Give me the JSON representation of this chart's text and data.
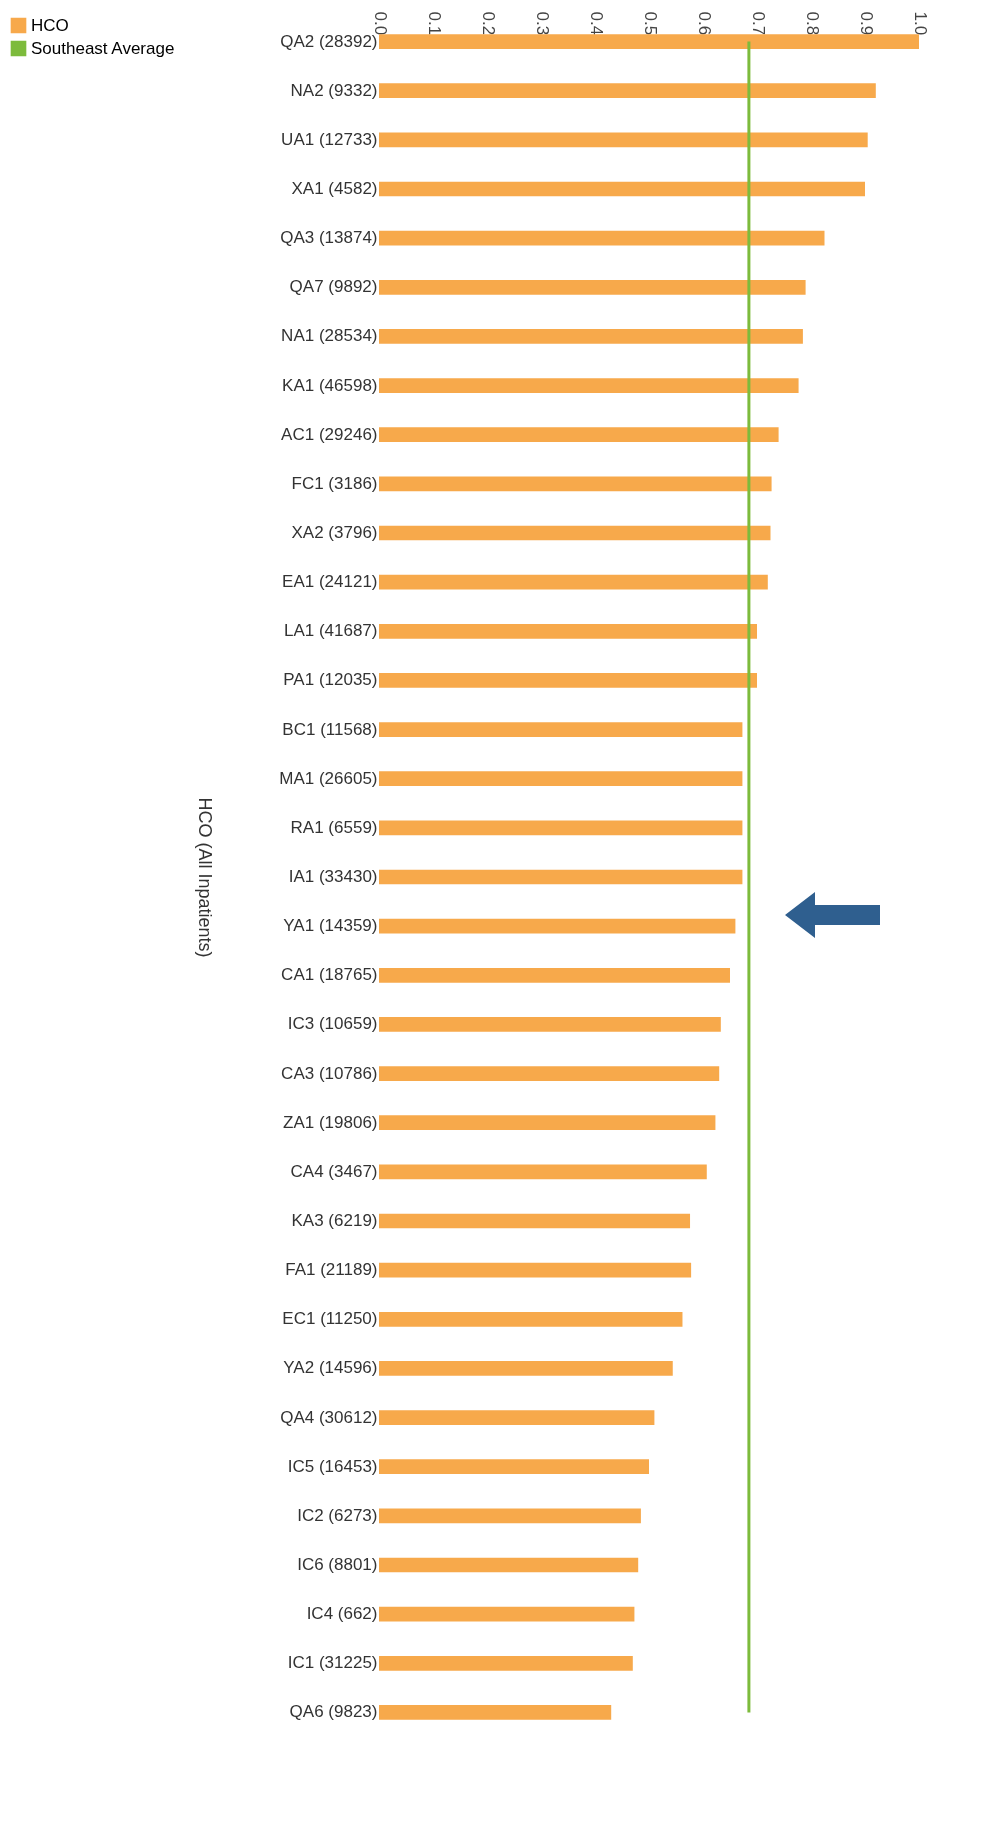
{
  "chart_data": {
    "type": "bar",
    "orientation": "horizontal",
    "ylabel": "HCO (All Inpatients)",
    "categories": [
      "QA2 (28392)",
      "NA2 (9332)",
      "UA1 (12733)",
      "XA1 (4582)",
      "QA3 (13874)",
      "QA7 (9892)",
      "NA1 (28534)",
      "KA1 (46598)",
      "AC1 (29246)",
      "FC1 (3186)",
      "XA2 (3796)",
      "EA1 (24121)",
      "LA1 (41687)",
      "PA1 (12035)",
      "BC1 (11568)",
      "MA1 (26605)",
      "RA1 (6559)",
      "IA1 (33430)",
      "YA1 (14359)",
      "CA1 (18765)",
      "IC3 (10659)",
      "CA3 (10786)",
      "ZA1 (19806)",
      "CA4 (3467)",
      "KA3 (6219)",
      "FA1 (21189)",
      "EC1 (11250)",
      "YA2 (14596)",
      "QA4 (30612)",
      "IC5 (16453)",
      "IC2 (6273)",
      "IC6 (8801)",
      "IC4 (662)",
      "IC1 (31225)",
      "QA6 (9823)"
    ],
    "series": [
      {
        "name": "HCO",
        "color": "#f7a94b",
        "values": [
          1.0,
          0.92,
          0.905,
          0.9,
          0.825,
          0.79,
          0.785,
          0.777,
          0.74,
          0.727,
          0.725,
          0.72,
          0.7,
          0.7,
          0.673,
          0.673,
          0.673,
          0.673,
          0.66,
          0.65,
          0.633,
          0.63,
          0.623,
          0.607,
          0.576,
          0.578,
          0.562,
          0.544,
          0.51,
          0.5,
          0.485,
          0.48,
          0.473,
          0.47,
          0.43
        ]
      },
      {
        "name": "Southeast Average",
        "type": "line",
        "color": "#7dbb3c",
        "values": [
          0.685,
          0.685,
          0.685,
          0.685,
          0.685,
          0.685,
          0.685,
          0.685,
          0.685,
          0.685,
          0.685,
          0.685,
          0.685,
          0.685,
          0.685,
          0.685,
          0.685,
          0.685,
          0.685,
          0.685,
          0.685,
          0.685,
          0.685,
          0.685,
          0.685,
          0.685,
          0.685,
          0.685,
          0.685,
          0.685,
          0.685,
          0.685,
          0.685,
          0.685,
          0.685
        ]
      }
    ],
    "xlim": [
      0,
      1
    ],
    "xticks": [
      {
        "value": 0,
        "label": "0.0"
      },
      0.1,
      0.2,
      0.3,
      0.4,
      0.5,
      0.6,
      0.7,
      0.8,
      0.9,
      {
        "value": 1,
        "label": "1.0"
      }
    ],
    "legend": "left"
  }
}
